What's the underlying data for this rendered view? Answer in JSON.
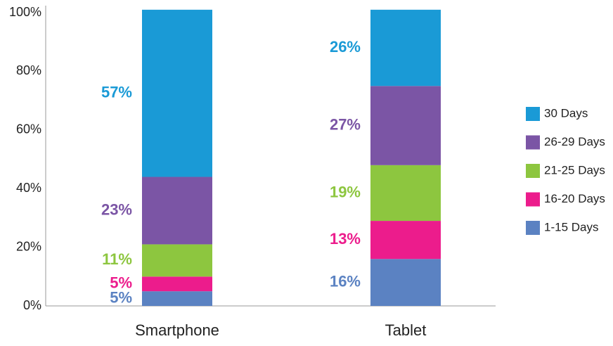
{
  "chart_data": {
    "type": "stacked_bar",
    "categories": [
      "Smartphone",
      "Tablet"
    ],
    "series": [
      {
        "name": "1-15 Days",
        "color": "#5b82c2",
        "values": [
          5,
          16
        ],
        "value_labels": [
          "5%",
          "16%"
        ]
      },
      {
        "name": "16-20 Days",
        "color": "#ec1c8c",
        "values": [
          5,
          13
        ],
        "value_labels": [
          "5%",
          "13%"
        ]
      },
      {
        "name": "21-25 Days",
        "color": "#8dc63f",
        "values": [
          11,
          19
        ],
        "value_labels": [
          "11%",
          "19%"
        ]
      },
      {
        "name": "26-29 Days",
        "color": "#7b55a5",
        "values": [
          23,
          27
        ],
        "value_labels": [
          "23%",
          "27%"
        ]
      },
      {
        "name": "30 Days",
        "color": "#1a9ad6",
        "values": [
          57,
          26
        ],
        "value_labels": [
          "57%",
          "26%"
        ]
      }
    ],
    "ylim": [
      0,
      100
    ],
    "yticks": [
      {
        "value": 0,
        "label": "0%"
      },
      {
        "value": 20,
        "label": "20%"
      },
      {
        "value": 40,
        "label": "40%"
      },
      {
        "value": 60,
        "label": "60%"
      },
      {
        "value": 80,
        "label": "80%"
      },
      {
        "value": 100,
        "label": "100%"
      }
    ],
    "grid": false,
    "legend": "right"
  }
}
